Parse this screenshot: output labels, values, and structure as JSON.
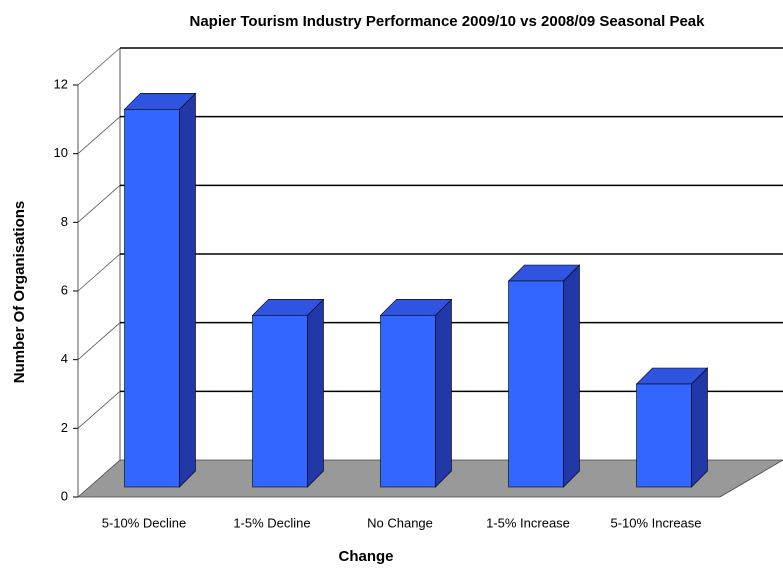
{
  "chart_data": {
    "type": "bar3d",
    "title": "Napier Tourism Industry Performance 2009/10 vs 2008/09 Seasonal Peak",
    "x_label": "Change",
    "y_label": "Number Of Organisations",
    "categories": [
      "5-10% Decline",
      "1-5% Decline",
      "No Change",
      "1-5% Increase",
      "5-10% Increase"
    ],
    "values": [
      11,
      5,
      5,
      6,
      3
    ],
    "color": "#3366ff",
    "ylim": [
      0,
      12
    ],
    "yticks": [
      0,
      2,
      4,
      6,
      8,
      10,
      12
    ],
    "grid": true
  }
}
